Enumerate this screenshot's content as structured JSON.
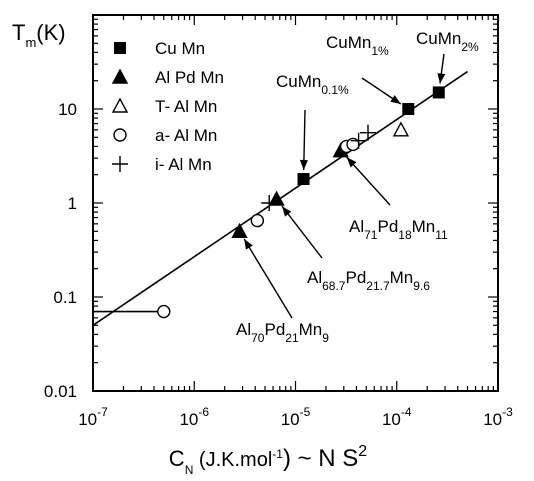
{
  "colors": {
    "ink": "#000000",
    "paper": "#ffffff"
  },
  "chart_data": {
    "type": "scatter",
    "x_scale": "log",
    "y_scale": "log",
    "xlim": [
      1e-07,
      0.001
    ],
    "ylim": [
      0.01,
      100
    ],
    "grid": false,
    "legend_position": "top-left",
    "y_axis_label": {
      "main": "T",
      "sub": "m",
      "tail": "(K)"
    },
    "x_axis_label": {
      "main": "C",
      "sub": "N",
      "tail": " (J.K.mol",
      "sup": "-1",
      "tail2": ") ~ N S",
      "sup2": "2"
    },
    "x_ticks": [
      {
        "value": 1e-07,
        "base": "10",
        "exp": "-7"
      },
      {
        "value": 1e-06,
        "base": "10",
        "exp": "-6"
      },
      {
        "value": 1e-05,
        "base": "10",
        "exp": "-5"
      },
      {
        "value": 0.0001,
        "base": "10",
        "exp": "-4"
      },
      {
        "value": 0.001,
        "base": "10",
        "exp": "-3"
      }
    ],
    "y_ticks": [
      {
        "value": 0.01,
        "label": "0.01"
      },
      {
        "value": 0.1,
        "label": "0.1"
      },
      {
        "value": 1,
        "label": "1"
      },
      {
        "value": 10,
        "label": "10"
      }
    ],
    "series": [
      {
        "name": "Cu Mn",
        "marker": "filled-square",
        "points": [
          [
            1.2e-05,
            1.8
          ],
          [
            0.00013,
            10
          ],
          [
            0.00026,
            15
          ]
        ]
      },
      {
        "name": "Al Pd Mn",
        "marker": "filled-triangle",
        "points": [
          [
            2.8e-06,
            0.5
          ],
          [
            6.5e-06,
            1.1
          ],
          [
            2.8e-05,
            3.6
          ]
        ]
      },
      {
        "name": "T- Al Mn",
        "marker": "open-triangle",
        "points": [
          [
            0.00011,
            6
          ]
        ]
      },
      {
        "name": "a- Al Mn",
        "marker": "open-circle",
        "points": [
          [
            5e-07,
            0.07
          ],
          [
            4.2e-06,
            0.65
          ],
          [
            3.2e-05,
            4
          ],
          [
            3.7e-05,
            4.2
          ]
        ]
      },
      {
        "name": "i- Al Mn",
        "marker": "plus",
        "points": [
          [
            5.5e-06,
            1
          ],
          [
            4.2e-05,
            4.6
          ],
          [
            5.2e-05,
            5.6
          ]
        ]
      }
    ],
    "fit_line": {
      "x": [
        1e-07,
        0.0005
      ],
      "y": [
        0.05,
        25
      ]
    },
    "horizontal_bar": {
      "x": [
        1e-07,
        5e-07
      ],
      "y": 0.07
    },
    "annotations": [
      {
        "parts": [
          {
            "t": "CuMn"
          },
          {
            "t": "2%",
            "sub": true
          }
        ],
        "target": [
          0.00026,
          15
        ]
      },
      {
        "parts": [
          {
            "t": "CuMn"
          },
          {
            "t": "1%",
            "sub": true
          }
        ],
        "target": [
          0.00013,
          10
        ]
      },
      {
        "parts": [
          {
            "t": "CuMn"
          },
          {
            "t": "0.1%",
            "sub": true
          }
        ],
        "target": [
          1.2e-05,
          1.8
        ]
      },
      {
        "parts": [
          {
            "t": "Al"
          },
          {
            "t": "71",
            "sub": true
          },
          {
            "t": "Pd"
          },
          {
            "t": "18",
            "sub": true
          },
          {
            "t": "Mn"
          },
          {
            "t": "11",
            "sub": true
          }
        ],
        "target": [
          2.8e-05,
          3.6
        ]
      },
      {
        "parts": [
          {
            "t": "Al"
          },
          {
            "t": "68.7",
            "sub": true
          },
          {
            "t": "Pd"
          },
          {
            "t": "21.7",
            "sub": true
          },
          {
            "t": "Mn"
          },
          {
            "t": "9.6",
            "sub": true
          }
        ],
        "target": [
          6.5e-06,
          1.1
        ]
      },
      {
        "parts": [
          {
            "t": "Al"
          },
          {
            "t": "70",
            "sub": true
          },
          {
            "t": "Pd"
          },
          {
            "t": "21",
            "sub": true
          },
          {
            "t": "Mn"
          },
          {
            "t": "9",
            "sub": true
          }
        ],
        "target": [
          2.8e-06,
          0.5
        ]
      }
    ]
  }
}
